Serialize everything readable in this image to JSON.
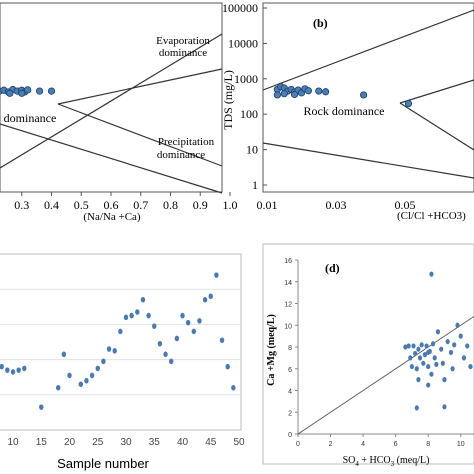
{
  "chart_data": [
    {
      "id": "a",
      "type": "scatter",
      "panel_label": "",
      "xlabel": "(Na/Na +Ca)",
      "xlim": [
        0.2,
        1.0
      ],
      "xticks": [
        "0.3",
        "0.4",
        "0.5",
        "0.6",
        "0.7",
        "0.8",
        "0.9",
        "1.0"
      ],
      "annotations": [
        "Evaporation dominance",
        "dominance",
        "Precipitation dominance"
      ],
      "points": [
        [
          0.225,
          380
        ],
        [
          0.24,
          400
        ],
        [
          0.255,
          360
        ],
        [
          0.27,
          420
        ],
        [
          0.285,
          380
        ],
        [
          0.3,
          400
        ],
        [
          0.31,
          360
        ],
        [
          0.32,
          410
        ],
        [
          0.36,
          380
        ],
        [
          0.4,
          380
        ],
        [
          0.26,
          330
        ],
        [
          0.3,
          330
        ]
      ],
      "ylim": [
        1,
        100000
      ],
      "yscale": "log"
    },
    {
      "id": "b",
      "type": "scatter",
      "panel_label": "(b)",
      "ylabel": "TDS (mg/L)",
      "yscale": "log",
      "ylim": [
        1,
        100000
      ],
      "yticks": [
        "1",
        "10",
        "100",
        "1000",
        "10000",
        "100000"
      ],
      "xscale": "linear",
      "xlim": [
        0.01,
        0.07
      ],
      "xticks": [
        "0.01",
        "0.03",
        "0.05"
      ],
      "xlabel": "(Cl/Cl +HCO3)",
      "annotations": [
        "Rock dominance"
      ],
      "points": [
        [
          0.013,
          500
        ],
        [
          0.014,
          600
        ],
        [
          0.015,
          550
        ],
        [
          0.016,
          450
        ],
        [
          0.017,
          500
        ],
        [
          0.018,
          420
        ],
        [
          0.019,
          480
        ],
        [
          0.02,
          400
        ],
        [
          0.021,
          520
        ],
        [
          0.022,
          460
        ],
        [
          0.025,
          450
        ],
        [
          0.027,
          430
        ],
        [
          0.038,
          350
        ],
        [
          0.051,
          200
        ],
        [
          0.013,
          350
        ],
        [
          0.015,
          380
        ],
        [
          0.018,
          360
        ]
      ]
    },
    {
      "id": "c",
      "type": "scatter",
      "panel_label": "",
      "xlabel": "Sample number",
      "xlim": [
        5,
        50
      ],
      "xticks": [
        "10",
        "15",
        "20",
        "25",
        "30",
        "35",
        "40",
        "45",
        "50"
      ],
      "ylim": [
        0,
        100
      ],
      "points": [
        [
          8,
          36
        ],
        [
          9,
          34
        ],
        [
          10,
          33
        ],
        [
          11,
          34
        ],
        [
          12,
          35
        ],
        [
          15,
          13
        ],
        [
          18,
          24
        ],
        [
          19,
          43
        ],
        [
          20,
          31
        ],
        [
          22,
          26
        ],
        [
          23,
          28
        ],
        [
          24,
          31
        ],
        [
          25,
          35
        ],
        [
          26,
          39
        ],
        [
          27,
          46
        ],
        [
          28,
          45
        ],
        [
          29,
          56
        ],
        [
          30,
          64
        ],
        [
          31,
          65
        ],
        [
          32,
          67
        ],
        [
          33,
          74
        ],
        [
          34,
          65
        ],
        [
          35,
          59
        ],
        [
          36,
          49
        ],
        [
          37,
          43
        ],
        [
          38,
          39
        ],
        [
          39,
          52
        ],
        [
          40,
          65
        ],
        [
          41,
          61
        ],
        [
          42,
          56
        ],
        [
          43,
          62
        ],
        [
          44,
          74
        ],
        [
          45,
          76
        ],
        [
          46,
          88
        ],
        [
          47,
          51
        ],
        [
          48,
          36
        ],
        [
          49,
          24
        ]
      ]
    },
    {
      "id": "d",
      "type": "scatter",
      "panel_label": "(d)",
      "ylabel": "Ca +Mg (meq/L)",
      "xlabel": "SO4 + HCO3 (meq/L)",
      "xlim": [
        0,
        11
      ],
      "xticks": [
        "0",
        "2",
        "4",
        "6",
        "8",
        "10"
      ],
      "ylim": [
        0,
        16
      ],
      "yticks": [
        "0",
        "2",
        "4",
        "6",
        "8",
        "10",
        "12",
        "14",
        "16"
      ],
      "line": [
        [
          0,
          0
        ],
        [
          11,
          11
        ]
      ],
      "points": [
        [
          6.6,
          8.0
        ],
        [
          6.8,
          8.1
        ],
        [
          6.9,
          7.0
        ],
        [
          7.0,
          6.2
        ],
        [
          7.1,
          8.1
        ],
        [
          7.2,
          7.4
        ],
        [
          7.3,
          6.0
        ],
        [
          7.3,
          2.4
        ],
        [
          7.4,
          5.0
        ],
        [
          7.5,
          7.0
        ],
        [
          7.6,
          8.2
        ],
        [
          7.7,
          6.5
        ],
        [
          7.8,
          7.3
        ],
        [
          7.9,
          8.1
        ],
        [
          8.0,
          4.5
        ],
        [
          8.0,
          6.2
        ],
        [
          8.1,
          7.6
        ],
        [
          8.2,
          5.5
        ],
        [
          8.2,
          14.7
        ],
        [
          8.3,
          8.3
        ],
        [
          8.4,
          7.0
        ],
        [
          8.5,
          6.4
        ],
        [
          8.6,
          9.4
        ],
        [
          8.8,
          7.8
        ],
        [
          8.9,
          6.5
        ],
        [
          9.0,
          2.5
        ],
        [
          9.2,
          8.5
        ],
        [
          9.4,
          7.5
        ],
        [
          9.5,
          6.0
        ],
        [
          9.6,
          8.2
        ],
        [
          9.8,
          10.0
        ],
        [
          10.0,
          9.0
        ],
        [
          10.2,
          7.0
        ],
        [
          10.4,
          8.1
        ],
        [
          10.6,
          6.2
        ],
        [
          9.0,
          5.0
        ],
        [
          8.0,
          7.5
        ],
        [
          7.4,
          7.8
        ]
      ]
    }
  ]
}
